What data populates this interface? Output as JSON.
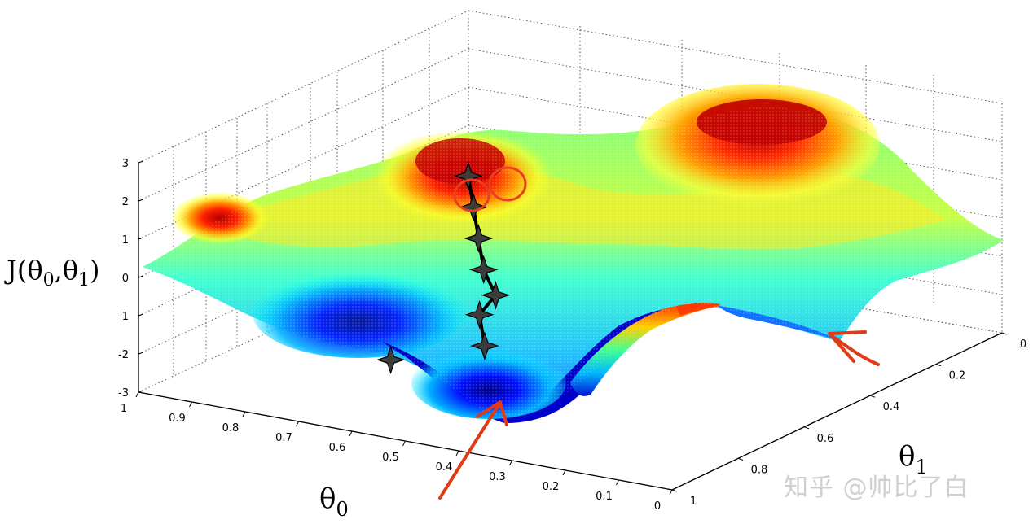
{
  "chart_data": {
    "type": "surface",
    "z_label_main": "J(θ",
    "z_label_sub0": "0",
    "z_label_comma": ",θ",
    "z_label_sub1": "1",
    "z_label_close": ")",
    "x_label_main": "θ",
    "x_label_sub": "0",
    "y_label_main": "θ",
    "y_label_sub": "1",
    "z_ticks": [
      "3",
      "2",
      "1",
      "0",
      "-1",
      "-2",
      "-3"
    ],
    "x_ticks": [
      "1",
      "0.9",
      "0.8",
      "0.7",
      "0.6",
      "0.5",
      "0.4",
      "0.3",
      "0.2",
      "0.1",
      "0"
    ],
    "y_ticks": [
      "0",
      "0.2",
      "0.4",
      "0.6",
      "0.8",
      "1"
    ],
    "xlim": [
      0,
      1
    ],
    "ylim": [
      0,
      1
    ],
    "zlim": [
      -3,
      3
    ],
    "grid": "dotted",
    "colormap": [
      "#00008f",
      "#0000ff",
      "#00ffff",
      "#7fff7f",
      "#ffff00",
      "#ff7f00",
      "#bf0000"
    ],
    "descent_path": {
      "color": "#000000",
      "marker_color": "#3c3c3c",
      "points": [
        {
          "t0": 0.33,
          "t1": 0.05
        },
        {
          "t0": 0.3,
          "t1": 0.17
        },
        {
          "t0": 0.27,
          "t1": 0.24
        },
        {
          "t0": 0.25,
          "t1": 0.34
        },
        {
          "t0": 0.22,
          "t1": 0.46
        },
        {
          "t0": 0.19,
          "t1": 0.58
        },
        {
          "t0": 0.16,
          "t1": 0.7
        }
      ],
      "alt_local_min": {
        "t0": 0.4,
        "t1": 0.02
      }
    },
    "circle_color": "#e84020",
    "arrow_color": "#e03a16"
  },
  "watermark": "知乎 @帅比了白"
}
